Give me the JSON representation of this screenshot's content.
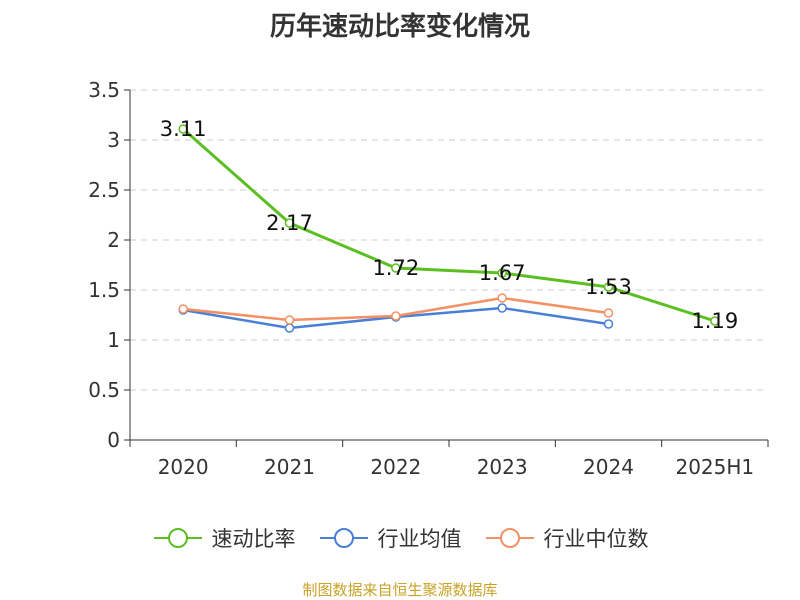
{
  "title": "历年速动比率变化情况",
  "footer": "制图数据来自恒生聚源数据库",
  "chart_data": {
    "type": "line",
    "title": "历年速动比率变化情况",
    "categories": [
      "2020",
      "2021",
      "2022",
      "2023",
      "2024",
      "2025H1"
    ],
    "ylim": [
      0,
      3.5
    ],
    "yticks": [
      0,
      0.5,
      1,
      1.5,
      2,
      2.5,
      3,
      3.5
    ],
    "ytick_labels": [
      "0",
      "0.5",
      "1",
      "1.5",
      "2",
      "2.5",
      "3",
      "3.5"
    ],
    "grid": true,
    "legend_position": "bottom",
    "series": [
      {
        "name": "速动比率",
        "color": "#5bbf21",
        "values": [
          3.11,
          2.17,
          1.72,
          1.67,
          1.53,
          1.19
        ],
        "labels": [
          "3.11",
          "2.17",
          "1.72",
          "1.67",
          "1.53",
          "1.19"
        ]
      },
      {
        "name": "行业均值",
        "color": "#4a7fd6",
        "values": [
          1.3,
          1.12,
          1.23,
          1.32,
          1.16,
          null
        ]
      },
      {
        "name": "行业中位数",
        "color": "#f39064",
        "values": [
          1.31,
          1.2,
          1.24,
          1.42,
          1.27,
          null
        ]
      }
    ]
  }
}
